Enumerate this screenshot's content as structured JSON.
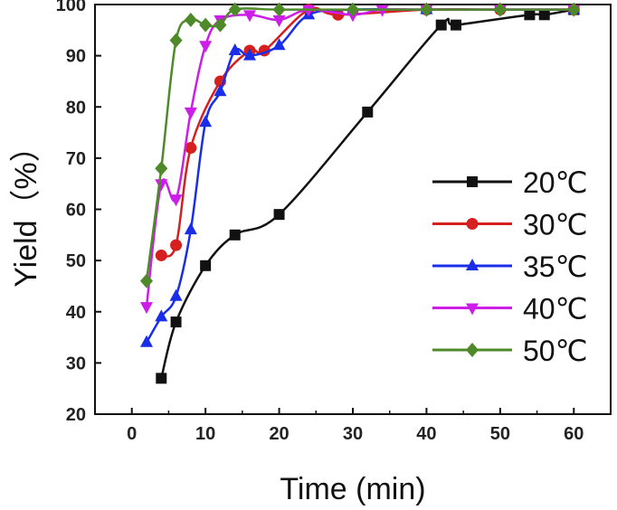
{
  "chart_data": {
    "type": "line",
    "xlabel": "Time (min)",
    "ylabel": "Yield（%）",
    "xlim": [
      -5,
      65
    ],
    "ylim": [
      20,
      100
    ],
    "xticks": [
      0,
      10,
      20,
      30,
      40,
      50,
      60
    ],
    "yticks": [
      20,
      30,
      40,
      50,
      60,
      70,
      80,
      90,
      100
    ],
    "legend_position": "right",
    "series": [
      {
        "name": "20℃",
        "color": "#111111",
        "marker": "square",
        "x": [
          4,
          6,
          10,
          14,
          20,
          32,
          42,
          44,
          54,
          56,
          60
        ],
        "y": [
          27,
          38,
          49,
          55,
          59,
          79,
          96,
          96,
          98,
          98,
          99
        ]
      },
      {
        "name": "30℃",
        "color": "#d62020",
        "marker": "circle",
        "x": [
          4,
          6,
          8,
          12,
          16,
          18,
          24,
          28,
          40,
          50,
          60
        ],
        "y": [
          51,
          53,
          72,
          85,
          91,
          91,
          99,
          98,
          99,
          99,
          99
        ]
      },
      {
        "name": "35℃",
        "color": "#1a2ee8",
        "marker": "triangle-up",
        "x": [
          2,
          4,
          6,
          8,
          10,
          12,
          14,
          16,
          20,
          24,
          30,
          40,
          60
        ],
        "y": [
          34,
          39,
          43,
          56,
          77,
          83,
          91,
          90,
          92,
          98,
          99,
          99,
          99
        ]
      },
      {
        "name": "40℃",
        "color": "#cc1ee8",
        "marker": "triangle-down",
        "x": [
          2,
          4,
          6,
          8,
          10,
          12,
          16,
          20,
          24,
          30,
          34,
          40,
          50,
          60
        ],
        "y": [
          41,
          65,
          62,
          79,
          92,
          97,
          98,
          97,
          99,
          98,
          99,
          99,
          99,
          99
        ]
      },
      {
        "name": "50℃",
        "color": "#4e8a2a",
        "marker": "diamond",
        "x": [
          2,
          4,
          6,
          8,
          10,
          12,
          14,
          20,
          30,
          40,
          50,
          60
        ],
        "y": [
          46,
          68,
          93,
          97,
          96,
          96,
          99,
          99,
          99,
          99,
          99,
          99
        ]
      }
    ]
  }
}
